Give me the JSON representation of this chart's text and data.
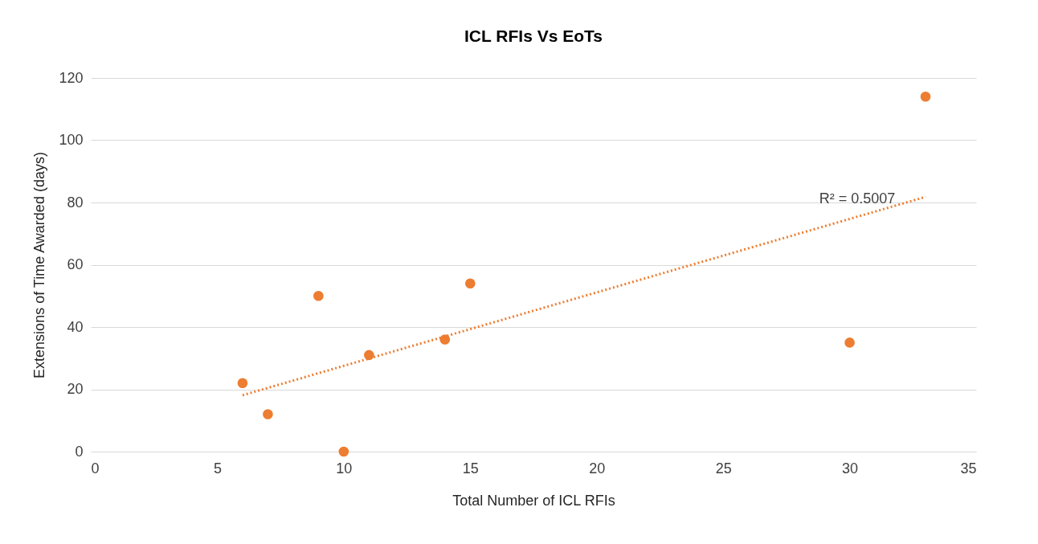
{
  "chart_data": {
    "type": "scatter",
    "title": "ICL RFIs Vs EoTs",
    "xlabel": "Total Number of ICL RFIs",
    "ylabel": "Extensions of Time Awarded (days)",
    "series": [
      {
        "color": "#ed7d31",
        "x": [
          6,
          7,
          9,
          10,
          11,
          14,
          15,
          30,
          33
        ],
        "values": [
          22,
          12,
          50,
          0,
          31,
          36,
          54,
          35,
          114
        ],
        "marker": "circle"
      },
      {
        "type": "line",
        "color": "#ed7d31",
        "x": [
          6,
          33
        ],
        "values": [
          18.1,
          81.8
        ],
        "line_style": "dotted"
      }
    ],
    "annotations": [
      "R² = 0.5007"
    ],
    "xlim": [
      0,
      35
    ],
    "xticks": [
      0,
      5,
      10,
      15,
      20,
      25,
      30,
      35
    ],
    "ylim": [
      0,
      120
    ],
    "yticks": [
      0,
      20,
      40,
      60,
      80,
      100,
      120
    ],
    "grid": "y"
  }
}
